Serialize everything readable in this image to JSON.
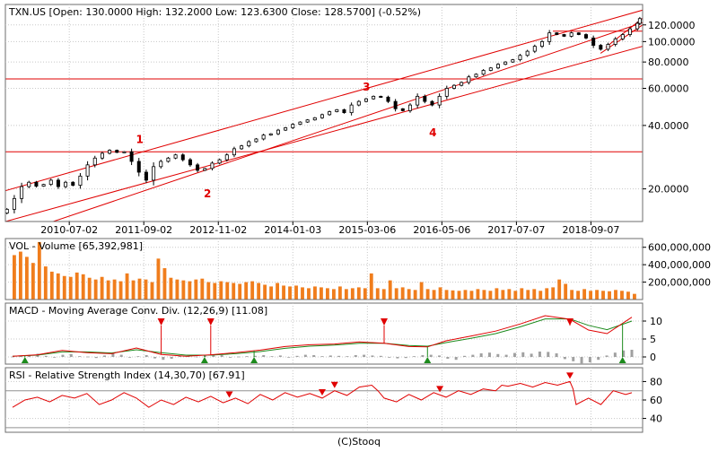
{
  "footer": "(C)Stooq",
  "colors": {
    "price": "#000000",
    "channel": "#e00000",
    "volume": "#f07d1c",
    "macd": "#e00000",
    "signal": "#1c8a1c",
    "histogram": "#a0a0a0",
    "rsi": "#e00000",
    "grid": "#c8c8c8",
    "marker_up": "#1c8a1c",
    "marker_down": "#e00000"
  },
  "chart_data": [
    {
      "type": "candlestick",
      "title": "TXN.US [Open: 130.0000  High: 132.2000  Low: 123.6300  Close: 128.5700] (-0.52%)",
      "x_tick_labels": [
        "2010-07-02",
        "2011-09-02",
        "2012-11-02",
        "2014-01-03",
        "2015-03-06",
        "2016-05-06",
        "2017-07-07",
        "2018-09-07"
      ],
      "y_tick_labels": [
        "120.0000",
        "100.0000",
        "80.0000",
        "60.0000",
        "40.0000",
        "20.0000"
      ],
      "y_ticks": [
        120,
        100,
        80,
        60,
        40,
        20
      ],
      "y_scale": "log",
      "ylim": [
        14,
        150
      ],
      "x_range": [
        "2009-07-01",
        "2019-06-30"
      ],
      "candle_dates": [
        "2009-07-10",
        "2009-08-21",
        "2009-10-02",
        "2009-11-13",
        "2009-12-25",
        "2010-02-05",
        "2010-03-19",
        "2010-04-30",
        "2010-06-11",
        "2010-07-23",
        "2010-09-03",
        "2010-10-15",
        "2010-11-26",
        "2011-01-07",
        "2011-02-18",
        "2011-04-01",
        "2011-05-13",
        "2011-06-24",
        "2011-08-05",
        "2011-09-16",
        "2011-10-28",
        "2011-12-09",
        "2012-01-20",
        "2012-03-02",
        "2012-04-13",
        "2012-05-25",
        "2012-07-06",
        "2012-08-17",
        "2012-09-28",
        "2012-11-09",
        "2012-12-21",
        "2013-02-01",
        "2013-03-15",
        "2013-04-26",
        "2013-06-07",
        "2013-07-19",
        "2013-08-30",
        "2013-10-11",
        "2013-11-22",
        "2014-01-03",
        "2014-02-14",
        "2014-03-28",
        "2014-05-09",
        "2014-06-20",
        "2014-08-01",
        "2014-09-12",
        "2014-10-24",
        "2014-12-05",
        "2015-01-16",
        "2015-02-27",
        "2015-04-10",
        "2015-05-22",
        "2015-07-03",
        "2015-08-14",
        "2015-09-25",
        "2015-11-06",
        "2015-12-18",
        "2016-01-29",
        "2016-03-11",
        "2016-04-22",
        "2016-06-03",
        "2016-07-15",
        "2016-08-26",
        "2016-10-07",
        "2016-11-18",
        "2016-12-30",
        "2017-02-10",
        "2017-03-24",
        "2017-05-05",
        "2017-06-16",
        "2017-07-28",
        "2017-09-08",
        "2017-10-20",
        "2017-12-01",
        "2018-01-12",
        "2018-02-23",
        "2018-04-06",
        "2018-05-18",
        "2018-06-29",
        "2018-08-10",
        "2018-09-21",
        "2018-11-02",
        "2018-12-14",
        "2019-01-25",
        "2019-03-08",
        "2019-04-19",
        "2019-05-31",
        "2019-06-14"
      ],
      "closes": [
        16.0,
        18.0,
        20.5,
        21.5,
        20.6,
        21.0,
        22.0,
        20.5,
        21.5,
        20.8,
        23.0,
        26.0,
        28.0,
        29.5,
        30.5,
        29.8,
        30.0,
        27.0,
        24.0,
        22.0,
        25.5,
        27.0,
        28.0,
        29.0,
        27.5,
        26.0,
        24.5,
        25.0,
        26.5,
        27.5,
        29.0,
        31.0,
        32.0,
        33.5,
        34.5,
        36.0,
        36.5,
        38.0,
        39.0,
        40.5,
        41.5,
        42.5,
        43.5,
        45.0,
        46.5,
        47.5,
        46.0,
        50.0,
        52.0,
        53.5,
        55.0,
        54.5,
        52.0,
        48.0,
        47.0,
        50.0,
        55.0,
        52.0,
        50.0,
        55.0,
        60.0,
        62.0,
        64.0,
        68.0,
        70.0,
        73.0,
        75.0,
        78.0,
        80.0,
        82.0,
        86.0,
        90.0,
        95.0,
        100.0,
        110.0,
        108.0,
        106.0,
        110.0,
        108.0,
        104.0,
        96.0,
        92.0,
        97.0,
        103.0,
        108.0,
        115.0,
        122.0,
        128.57
      ],
      "series": [
        {
          "name": "channel-line",
          "points": [
            [
              "2009-07-01",
              19.6
            ],
            [
              "2019-06-30",
              141.0
            ]
          ]
        },
        {
          "name": "channel-line",
          "points": [
            [
              "2009-07-01",
              14.0
            ],
            [
              "2019-06-30",
              95.0
            ]
          ]
        },
        {
          "name": "channel-line",
          "points": [
            [
              "2010-04-01",
              14.0
            ],
            [
              "2019-06-30",
              123.0
            ]
          ]
        },
        {
          "name": "channel-line",
          "points": [
            [
              "2018-02-01",
              112.0
            ],
            [
              "2019-06-30",
              112.0
            ]
          ]
        },
        {
          "name": "channel-line",
          "points": [
            [
              "2018-11-01",
              88.0
            ],
            [
              "2019-06-30",
              120.0
            ]
          ]
        },
        {
          "name": "channel-line",
          "points": [
            [
              "2018-12-01",
              94.0
            ],
            [
              "2019-06-30",
              129.0
            ]
          ]
        },
        {
          "name": "channel-line",
          "points": [
            [
              "2009-07-01",
              66.5
            ],
            [
              "2019-06-30",
              66.5
            ]
          ]
        },
        {
          "name": "channel-line",
          "points": [
            [
              "2009-07-01",
              30.0
            ],
            [
              "2019-06-30",
              30.0
            ]
          ]
        }
      ],
      "annotations": [
        {
          "text": "1",
          "x": "2011-08-10",
          "y": 33.0
        },
        {
          "text": "2",
          "x": "2012-09-01",
          "y": 18.2
        },
        {
          "text": "3",
          "x": "2015-03-01",
          "y": 58.5
        },
        {
          "text": "4",
          "x": "2016-03-15",
          "y": 35.5
        }
      ]
    },
    {
      "type": "bar",
      "title": "VOL - Volume [65,392,981]",
      "y_tick_labels": [
        "600,000,000",
        "400,000,000",
        "200,000,000"
      ],
      "y_ticks": [
        600000000,
        400000000,
        200000000
      ],
      "ylim": [
        0,
        700000000
      ],
      "values": [
        510000000,
        550000000,
        490000000,
        420000000,
        660000000,
        380000000,
        320000000,
        300000000,
        270000000,
        260000000,
        310000000,
        290000000,
        250000000,
        230000000,
        260000000,
        220000000,
        230000000,
        210000000,
        300000000,
        220000000,
        240000000,
        230000000,
        200000000,
        470000000,
        360000000,
        250000000,
        230000000,
        220000000,
        210000000,
        230000000,
        240000000,
        200000000,
        190000000,
        210000000,
        200000000,
        190000000,
        180000000,
        200000000,
        210000000,
        190000000,
        170000000,
        150000000,
        190000000,
        160000000,
        150000000,
        160000000,
        140000000,
        130000000,
        150000000,
        140000000,
        130000000,
        120000000,
        150000000,
        120000000,
        130000000,
        140000000,
        130000000,
        300000000,
        130000000,
        120000000,
        220000000,
        130000000,
        140000000,
        120000000,
        110000000,
        200000000,
        120000000,
        110000000,
        140000000,
        110000000,
        105000000,
        100000000,
        110000000,
        100000000,
        120000000,
        110000000,
        100000000,
        130000000,
        110000000,
        120000000,
        100000000,
        130000000,
        110000000,
        120000000,
        100000000,
        130000000,
        140000000,
        230000000,
        180000000,
        110000000,
        100000000,
        120000000,
        100000000,
        110000000,
        100000000,
        95000000,
        110000000,
        100000000,
        90000000,
        65392981
      ]
    },
    {
      "type": "line",
      "title": "MACD - Moving Average Conv. Div. (12,26,9) [11.08]",
      "y_tick_labels": [
        "10",
        "5",
        "0"
      ],
      "y_ticks": [
        10,
        5,
        0
      ],
      "ylim": [
        -2,
        15
      ],
      "macd_points": [
        [
          0,
          0.2
        ],
        [
          0.04,
          0.6
        ],
        [
          0.08,
          1.8
        ],
        [
          0.12,
          1.2
        ],
        [
          0.16,
          0.9
        ],
        [
          0.2,
          2.5
        ],
        [
          0.24,
          0.7
        ],
        [
          0.28,
          0.2
        ],
        [
          0.32,
          0.6
        ],
        [
          0.36,
          1.2
        ],
        [
          0.4,
          1.9
        ],
        [
          0.44,
          2.9
        ],
        [
          0.48,
          3.4
        ],
        [
          0.52,
          3.6
        ],
        [
          0.56,
          4.2
        ],
        [
          0.6,
          3.8
        ],
        [
          0.64,
          2.9
        ],
        [
          0.67,
          2.8
        ],
        [
          0.7,
          4.5
        ],
        [
          0.74,
          5.8
        ],
        [
          0.78,
          7.2
        ],
        [
          0.82,
          9.2
        ],
        [
          0.86,
          11.5
        ],
        [
          0.9,
          10.5
        ],
        [
          0.93,
          7.5
        ],
        [
          0.96,
          6.5
        ],
        [
          1,
          11.08
        ]
      ],
      "signal_points": [
        [
          0,
          0.2
        ],
        [
          0.04,
          0.5
        ],
        [
          0.08,
          1.4
        ],
        [
          0.12,
          1.4
        ],
        [
          0.16,
          1.1
        ],
        [
          0.2,
          2.0
        ],
        [
          0.24,
          1.2
        ],
        [
          0.28,
          0.5
        ],
        [
          0.32,
          0.5
        ],
        [
          0.36,
          0.9
        ],
        [
          0.4,
          1.5
        ],
        [
          0.44,
          2.4
        ],
        [
          0.48,
          3.0
        ],
        [
          0.52,
          3.3
        ],
        [
          0.56,
          3.8
        ],
        [
          0.6,
          3.8
        ],
        [
          0.64,
          3.2
        ],
        [
          0.67,
          3.0
        ],
        [
          0.7,
          4.0
        ],
        [
          0.74,
          5.2
        ],
        [
          0.78,
          6.5
        ],
        [
          0.82,
          8.4
        ],
        [
          0.86,
          10.6
        ],
        [
          0.9,
          10.6
        ],
        [
          0.93,
          8.8
        ],
        [
          0.96,
          7.6
        ],
        [
          1,
          10.0
        ]
      ],
      "histogram": [
        0.1,
        0.2,
        0.5,
        0.9,
        0.3,
        -0.2,
        0.6,
        0.8,
        0.2,
        0.1,
        -0.3,
        0.4,
        1.0,
        0.6,
        -0.1,
        0.2,
        0.5,
        -0.4,
        -0.8,
        -0.5,
        0.3,
        0.2,
        0.1,
        0.4,
        0.6,
        0.5,
        -0.2,
        0.1,
        0.2,
        0.3,
        0.5,
        0.2,
        0.4,
        -0.1,
        0.3,
        0.6,
        0.5,
        0.2,
        0.4,
        0.3,
        0.2,
        0.5,
        0.6,
        0.4,
        0.3,
        -0.2,
        -0.4,
        -0.3,
        0.2,
        0.5,
        0.6,
        0.4,
        -0.5,
        -0.8,
        0.3,
        0.6,
        1.0,
        1.2,
        0.8,
        0.6,
        1.1,
        1.3,
        0.9,
        1.5,
        1.4,
        1.0,
        -0.6,
        -1.2,
        -1.8,
        -1.5,
        -0.8,
        0.4,
        1.2,
        1.8,
        2.0
      ],
      "buy_markers": [
        0.02,
        0.31,
        0.39,
        0.67,
        0.985
      ],
      "sell_markers": [
        0.24,
        0.32,
        0.6,
        0.9
      ]
    },
    {
      "type": "line",
      "title": "RSI - Relative Strength Index (14,30,70) [67.91]",
      "y_tick_labels": [
        "80",
        "60",
        "40"
      ],
      "y_ticks": [
        80,
        60,
        40
      ],
      "ylim": [
        25,
        95
      ],
      "reference_lines": [
        70,
        30
      ],
      "rsi_points": [
        [
          0,
          52
        ],
        [
          0.02,
          60
        ],
        [
          0.04,
          63
        ],
        [
          0.06,
          58
        ],
        [
          0.08,
          65
        ],
        [
          0.1,
          62
        ],
        [
          0.12,
          67
        ],
        [
          0.14,
          55
        ],
        [
          0.16,
          60
        ],
        [
          0.18,
          68
        ],
        [
          0.2,
          62
        ],
        [
          0.22,
          52
        ],
        [
          0.24,
          60
        ],
        [
          0.26,
          55
        ],
        [
          0.28,
          63
        ],
        [
          0.3,
          58
        ],
        [
          0.32,
          64
        ],
        [
          0.34,
          57
        ],
        [
          0.36,
          62
        ],
        [
          0.38,
          56
        ],
        [
          0.4,
          66
        ],
        [
          0.42,
          60
        ],
        [
          0.44,
          68
        ],
        [
          0.46,
          63
        ],
        [
          0.48,
          67
        ],
        [
          0.5,
          62
        ],
        [
          0.52,
          70
        ],
        [
          0.54,
          65
        ],
        [
          0.56,
          74
        ],
        [
          0.58,
          76
        ],
        [
          0.59,
          70
        ],
        [
          0.6,
          62
        ],
        [
          0.62,
          58
        ],
        [
          0.64,
          66
        ],
        [
          0.66,
          60
        ],
        [
          0.68,
          68
        ],
        [
          0.7,
          63
        ],
        [
          0.72,
          70
        ],
        [
          0.74,
          66
        ],
        [
          0.76,
          72
        ],
        [
          0.78,
          70
        ],
        [
          0.79,
          76
        ],
        [
          0.8,
          75
        ],
        [
          0.82,
          78
        ],
        [
          0.84,
          74
        ],
        [
          0.86,
          79
        ],
        [
          0.88,
          76
        ],
        [
          0.9,
          80
        ],
        [
          0.905,
          72
        ],
        [
          0.91,
          55
        ],
        [
          0.93,
          62
        ],
        [
          0.95,
          55
        ],
        [
          0.97,
          70
        ],
        [
          0.99,
          66
        ],
        [
          1,
          67.91
        ]
      ],
      "sell_markers": [
        0.35,
        0.5,
        0.52,
        0.69,
        0.9
      ]
    }
  ]
}
